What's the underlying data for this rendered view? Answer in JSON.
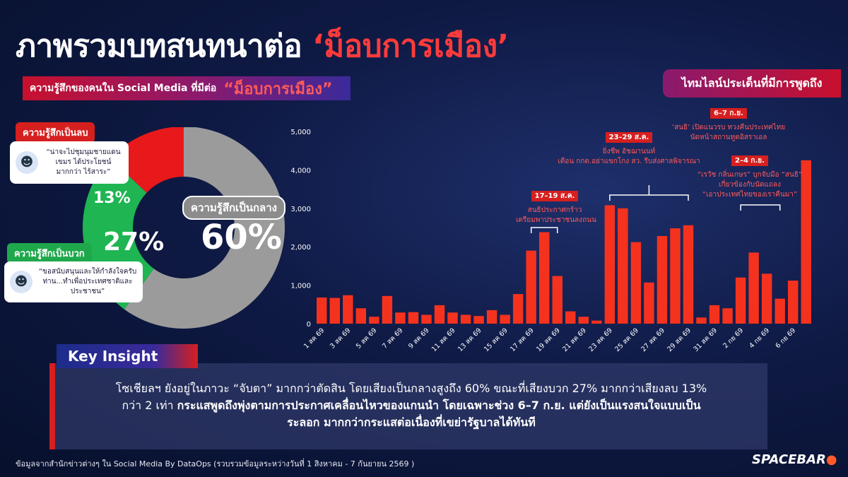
{
  "title": {
    "prefix": "ภาพรวมบทสนทนาต่อ",
    "highlight": "‘ม็อบการเมือง’"
  },
  "sentiment": {
    "banner_text": "ความรู้สึกของคนใน Social Media ที่มีต่อ",
    "banner_highlight": "“ม็อบการเมือง”",
    "negative_label": "ความรู้สึกเป็นลบ",
    "positive_label": "ความรู้สึกเป็นบวก",
    "neutral_label": "ความรู้สึกเป็นกลาง",
    "negative_quote": "“น่าจะไปชุมนุมชายแดน เขมร ได้ประโยชน์มากกว่า ไร้สาระ”",
    "positive_quote": "“ขอสนับสนุนและให้กำลังใจครับ ท่าน...ทำเพื่อประเทศชาติและ ประชาชน”",
    "negative_pct": "13%",
    "positive_pct": "27%",
    "neutral_pct": "60%",
    "colors": {
      "negative": "#e8191b",
      "positive": "#1fb552",
      "neutral": "#9b9b9b"
    }
  },
  "timeline": {
    "banner": "ไทมไลน์ประเด็นที่มีการพูดถึง",
    "events": [
      {
        "date": "17–19 ส.ค.",
        "lines": [
          "สนธิประกาศกร้าว",
          "เตรียมพาประชาชนลงถนน"
        ]
      },
      {
        "date": "23–29 ส.ค.",
        "lines": [
          "ยิ่งชีพ อัชฌานนท์",
          "เตือน กกต.อย่าแขกโกง สว. รีบส่งศาลพิจารณา"
        ]
      },
      {
        "date": "6–7 ก.ย.",
        "lines": [
          "‘สนธิ’ เปิดแนวรบ ทวงคืนประเทศไทย",
          "นัดหน้าสถานทูตอิสราเอล"
        ]
      },
      {
        "date": "2–4 ก.ย.",
        "lines": [
          "“เรวัช กลิ่นเกษร” บุกจับมือ “สนธิ”",
          "เกี่ยวข้องกับนัดแถลง",
          "“เอาประเทศไทยของเราคืนมา”"
        ]
      }
    ]
  },
  "chart_data": {
    "type": "bar",
    "color": "#f5321e",
    "ylim": [
      0,
      5000
    ],
    "yticks": [
      "0",
      "1,000",
      "2,000",
      "3,000",
      "4,000",
      "5,000"
    ],
    "categories": [
      "1 สค 69",
      "2 สค 69",
      "3 สค 69",
      "4 สค 69",
      "5 สค 69",
      "6 สค 69",
      "7 สค 69",
      "8 สค 69",
      "9 สค 69",
      "10 สค 69",
      "11 สค 69",
      "12 สค 69",
      "13 สค 69",
      "14 สค 69",
      "15 สค 69",
      "16 สค 69",
      "17 สค 69",
      "18 สค 69",
      "19 สค 69",
      "20 สค 69",
      "21 สค 69",
      "22 สค 69",
      "23 สค 69",
      "24 สค 69",
      "25 สค 69",
      "26 สค 69",
      "27 สค 69",
      "28 สค 69",
      "29 สค 69",
      "30 สค 69",
      "31 สค 69",
      "1 กย 69",
      "2 กย 69",
      "3 กย 69",
      "4 กย 69",
      "5 กย 69",
      "6 กย 69",
      "7 กย 69"
    ],
    "xtick_labels": [
      "1 สค 69",
      "3 สค 69",
      "5 สค 69",
      "7 สค 69",
      "9 สค 69",
      "11 สค 69",
      "13 สค 69",
      "15 สค 69",
      "17 สค 69",
      "19 สค 69",
      "21 สค 69",
      "23 สค 69",
      "25 สค 69",
      "27 สค 69",
      "29 สค 69",
      "31 สค 69",
      "2 กย 69",
      "4 กย 69",
      "6 กย 69"
    ],
    "values": [
      680,
      670,
      740,
      400,
      180,
      720,
      290,
      300,
      230,
      480,
      290,
      230,
      200,
      350,
      230,
      770,
      1900,
      2380,
      1240,
      320,
      180,
      80,
      3080,
      3000,
      2120,
      1070,
      2280,
      2480,
      2560,
      160,
      480,
      400,
      1200,
      1850,
      1300,
      650,
      1120,
      4250
    ]
  },
  "key_insight": {
    "title": "Key Insight",
    "line1": "โซเชียลฯ ยังอยู่ในภาวะ “จับตา” มากกว่าตัดสิน โดยเสียงเป็นกลางสูงถึง 60% ขณะที่เสียงบวก 27% มากกว่าเสียงลบ 13%",
    "line2_plain": "กว่า 2 เท่า ",
    "line2_bold": "กระแสพูดถึงพุ่งตามการประกาศเคลื่อนไหวของแกนนำ โดยเฉพาะช่วง 6–7 ก.ย. แต่ยังเป็นแรงสนใจแบบเป็น",
    "line3_bold": "ระลอก มากกว่ากระแสต่อเนื่องที่เขย่ารัฐบาลได้ทันที"
  },
  "footer": "ข้อมูลจากสำนักข่าวต่างๆ ใน Social Media By DataOps (รวบรวมข้อมูลระหว่างวันที่ 1 สิงหาคม - 7 กันยายน 2569 )",
  "logo": {
    "text": "SPACEBAR",
    "dot": "●"
  }
}
